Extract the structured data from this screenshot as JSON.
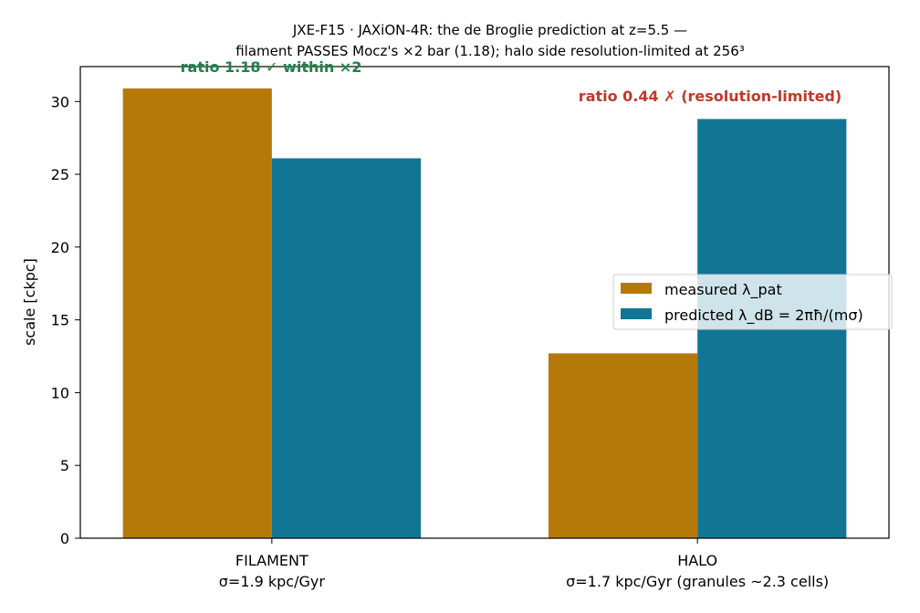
{
  "chart_data": {
    "type": "bar",
    "title": [
      "JXE-F15 · JAXiON-4R: the de Broglie prediction at z=5.5 —",
      "filament PASSES Mocz's ×2 bar (1.18); halo side resolution-limited at 256³"
    ],
    "ylabel": "scale [ckpc]",
    "xlabel": "",
    "ylim": [
      0,
      32.4
    ],
    "yticks": [
      0,
      5,
      10,
      15,
      20,
      25,
      30
    ],
    "categories": [
      [
        "FILAMENT",
        "σ=1.9 kpc/Gyr"
      ],
      [
        "HALO",
        "σ=1.7 kpc/Gyr (granules ~2.3 cells)"
      ]
    ],
    "series": [
      {
        "name": "measured λ_pat",
        "color": "#b5790a",
        "values": [
          30.9,
          12.7
        ]
      },
      {
        "name": "predicted λ_dB = 2πħ/(mσ)",
        "color": "#117694",
        "values": [
          26.1,
          28.8
        ]
      }
    ],
    "annotations": [
      {
        "text": "ratio 1.18 ✓ within ×2",
        "status": "good",
        "color": "#1e8449"
      },
      {
        "text": "ratio 0.44 ✗ (resolution-limited)",
        "status": "bad",
        "color": "#c0392b"
      }
    ],
    "legend_placement": "center-right",
    "grid": false
  }
}
